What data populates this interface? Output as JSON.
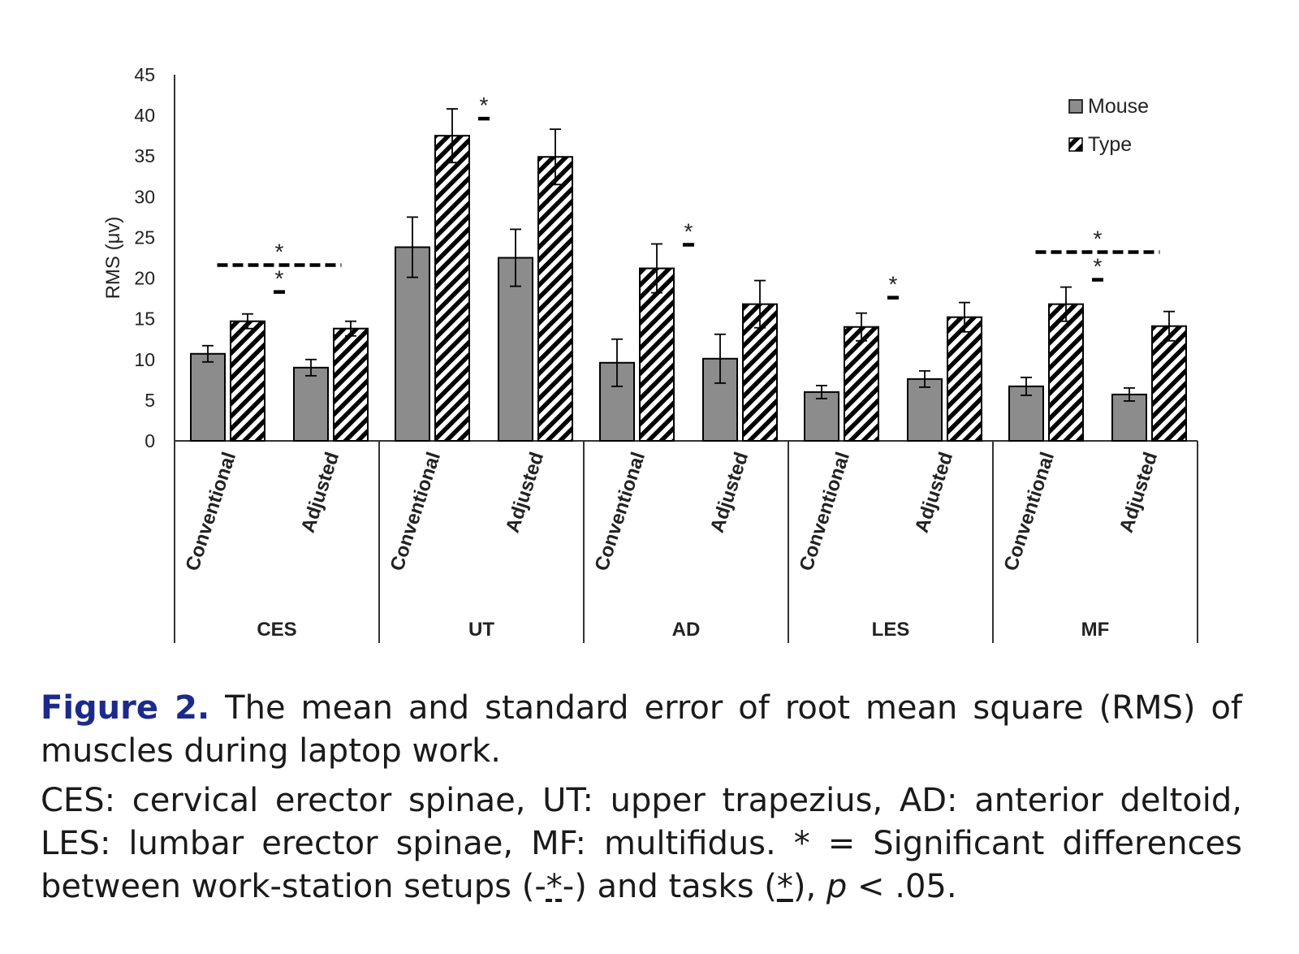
{
  "chart_data": {
    "type": "bar",
    "ylabel": "RMS (μv)",
    "xlabel": "",
    "ylim": [
      0,
      45
    ],
    "yticks": [
      "0",
      "5",
      "10",
      "15",
      "20",
      "25",
      "30",
      "35",
      "40",
      "45"
    ],
    "groups": [
      "CES",
      "UT",
      "AD",
      "LES",
      "MF"
    ],
    "conditions": [
      "Conventional",
      "Adjusted"
    ],
    "series": [
      {
        "name": "Mouse",
        "fill": "solid-gray",
        "values": [
          [
            10.7,
            9.0
          ],
          [
            23.8,
            22.5
          ],
          [
            9.6,
            10.1
          ],
          [
            6.0,
            7.6
          ],
          [
            6.7,
            5.7
          ]
        ],
        "errors": [
          [
            1.0,
            1.0
          ],
          [
            3.7,
            3.5
          ],
          [
            2.9,
            3.0
          ],
          [
            0.8,
            1.0
          ],
          [
            1.1,
            0.8
          ]
        ]
      },
      {
        "name": "Type",
        "fill": "diagonal-hatch",
        "values": [
          [
            14.7,
            13.8
          ],
          [
            37.5,
            34.9
          ],
          [
            21.2,
            16.8
          ],
          [
            14.0,
            15.2
          ],
          [
            16.8,
            14.1
          ]
        ],
        "errors": [
          [
            0.9,
            0.9
          ],
          [
            3.3,
            3.4
          ],
          [
            3.0,
            2.9
          ],
          [
            1.7,
            1.8
          ],
          [
            2.1,
            1.8
          ]
        ]
      }
    ],
    "significance": [
      {
        "group": "CES",
        "type": "setup",
        "level": 21.6,
        "label": "*"
      },
      {
        "group": "CES",
        "type": "task",
        "level": 18.3,
        "label": "*"
      },
      {
        "group": "UT",
        "type": "task",
        "level": 39.6,
        "label": "*"
      },
      {
        "group": "AD",
        "type": "task",
        "level": 24.1,
        "label": "*"
      },
      {
        "group": "LES",
        "type": "task",
        "level": 17.6,
        "label": "*"
      },
      {
        "group": "MF",
        "type": "setup",
        "level": 23.2,
        "label": "*"
      },
      {
        "group": "MF",
        "type": "task",
        "level": 19.8,
        "label": "*"
      }
    ],
    "legend": "top-right",
    "grid": false,
    "colors": {
      "mouse": "#8c8c8c",
      "outline": "#000000",
      "axis": "#333333",
      "text": "#222222"
    }
  },
  "caption": {
    "figure_label": "Figure 2.",
    "title": "The mean and standard error of root mean square (RMS) of muscles during laptop work.",
    "notes_part1": "CES: cervical erector spinae, UT: upper trapezius, AD: anterior deltoid, LES: lumbar erector spinae, MF: multifidus. * = Significant differences between work-station setups (-",
    "setup_marker": "*",
    "notes_part2": "-) and tasks (",
    "task_marker": "*",
    "notes_part3": "), ",
    "p_symbol": "p",
    "notes_part4": " < .05."
  }
}
